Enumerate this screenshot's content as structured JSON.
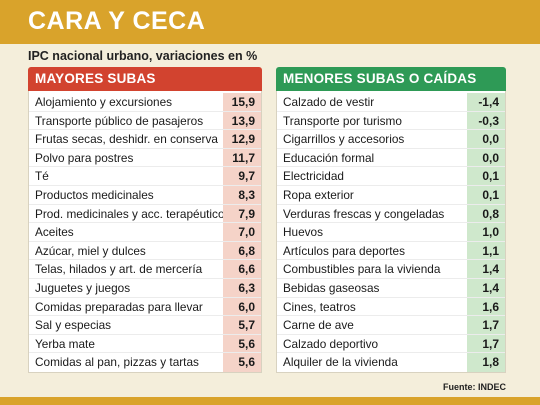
{
  "header": {
    "title": "CARA Y CECA",
    "subtitle": "IPC nacional urbano, variaciones en %"
  },
  "colors": {
    "banner": "#d9a32b",
    "left_header": "#d2432f",
    "right_header": "#2e9a56",
    "left_value_bg": "#f5d3c8",
    "right_value_bg": "#cfe8cc"
  },
  "chart_data": {
    "type": "table",
    "tables": [
      {
        "title": "MAYORES SUBAS",
        "rows": [
          {
            "label": "Alojamiento y excursiones",
            "value": "15,9"
          },
          {
            "label": "Transporte público de pasajeros",
            "value": "13,9"
          },
          {
            "label": "Frutas secas, deshidr. en conserva",
            "value": "12,9"
          },
          {
            "label": "Polvo para postres",
            "value": "11,7"
          },
          {
            "label": "Té",
            "value": "9,7"
          },
          {
            "label": "Productos medicinales",
            "value": "8,3"
          },
          {
            "label": "Prod. medicinales y acc. terapéuticos",
            "value": "7,9"
          },
          {
            "label": "Aceites",
            "value": "7,0"
          },
          {
            "label": "Azúcar, miel y dulces",
            "value": "6,8"
          },
          {
            "label": "Telas, hilados y art. de mercería",
            "value": "6,6"
          },
          {
            "label": "Juguetes y juegos",
            "value": "6,3"
          },
          {
            "label": "Comidas preparadas para llevar",
            "value": "6,0"
          },
          {
            "label": "Sal y especias",
            "value": "5,7"
          },
          {
            "label": "Yerba mate",
            "value": "5,6"
          },
          {
            "label": "Comidas al pan, pizzas y tartas",
            "value": "5,6"
          }
        ]
      },
      {
        "title": "MENORES SUBAS O CAÍDAS",
        "rows": [
          {
            "label": "Calzado de vestir",
            "value": "-1,4"
          },
          {
            "label": "Transporte por turismo",
            "value": "-0,3"
          },
          {
            "label": "Cigarrillos y accesorios",
            "value": "0,0"
          },
          {
            "label": "Educación formal",
            "value": "0,0"
          },
          {
            "label": "Electricidad",
            "value": "0,1"
          },
          {
            "label": "Ropa exterior",
            "value": "0,1"
          },
          {
            "label": "Verduras frescas y congeladas",
            "value": "0,8"
          },
          {
            "label": "Huevos",
            "value": "1,0"
          },
          {
            "label": "Artículos para deportes",
            "value": "1,1"
          },
          {
            "label": "Combustibles para la vivienda",
            "value": "1,4"
          },
          {
            "label": "Bebidas gaseosas",
            "value": "1,4"
          },
          {
            "label": "Cines, teatros",
            "value": "1,6"
          },
          {
            "label": "Carne de ave",
            "value": "1,7"
          },
          {
            "label": "Calzado deportivo",
            "value": "1,7"
          },
          {
            "label": "Alquiler de la vivienda",
            "value": "1,8"
          }
        ]
      }
    ]
  },
  "footer": {
    "source": "Fuente: INDEC"
  }
}
